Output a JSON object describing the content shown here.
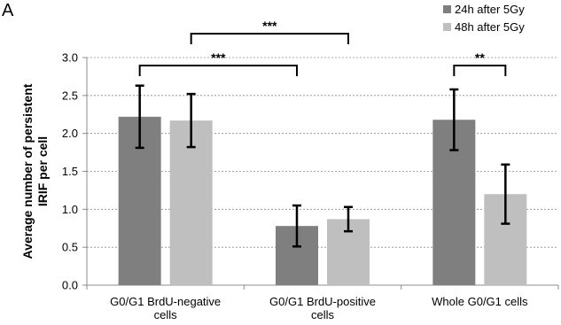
{
  "panel_label": "A",
  "chart_data": {
    "type": "bar",
    "ylabel": "Average number of persistent IRIF per cell",
    "ylabel_lines": [
      "Average number of persistent",
      "IRIF per cell"
    ],
    "ylim": [
      0,
      3.0
    ],
    "yticks": [
      "0.0",
      "0.5",
      "1.0",
      "1.5",
      "2.0",
      "2.5",
      "3.0"
    ],
    "grid": true,
    "legend_position": "top-right",
    "categories": [
      "G0/G1 BrdU-negative cells",
      "G0/G1 BrdU-positive cells",
      "Whole G0/G1 cells"
    ],
    "category_lines": [
      [
        "G0/G1 BrdU-negative",
        "cells"
      ],
      [
        "G0/G1 BrdU-positive",
        "cells"
      ],
      [
        "Whole G0/G1 cells"
      ]
    ],
    "series": [
      {
        "name": "24h after 5Gy",
        "color": "#7f7f7f",
        "values": [
          2.22,
          0.78,
          2.18
        ],
        "errors": [
          0.41,
          0.27,
          0.4
        ]
      },
      {
        "name": "48h after 5Gy",
        "color": "#bfbfbf",
        "values": [
          2.17,
          0.87,
          1.2
        ],
        "errors": [
          0.35,
          0.16,
          0.39
        ]
      }
    ],
    "annotations": [
      {
        "text": "***",
        "from": [
          0,
          0
        ],
        "to": [
          1,
          0
        ]
      },
      {
        "text": "***",
        "from": [
          0,
          1
        ],
        "to": [
          1,
          1
        ]
      },
      {
        "text": "**",
        "from": [
          2,
          0
        ],
        "to": [
          2,
          1
        ]
      }
    ]
  }
}
